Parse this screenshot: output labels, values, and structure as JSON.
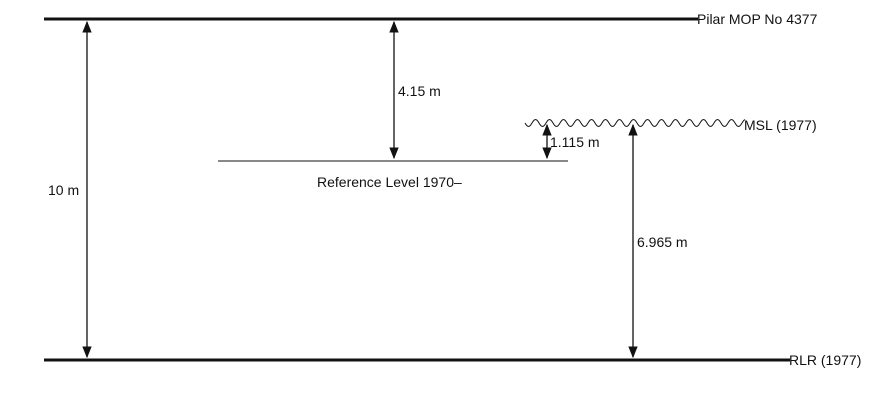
{
  "lines": {
    "top_label": "Pilar MOP No 4377",
    "msl_label": "MSL (1977)",
    "rlr_label": "RLR (1977)",
    "reference_label": "Reference Level 1970–"
  },
  "dimensions": {
    "total": "10 m",
    "top_to_reference": "4.15 m",
    "reference_to_msl": "1.115 m",
    "msl_to_rlr": "6.965 m"
  }
}
